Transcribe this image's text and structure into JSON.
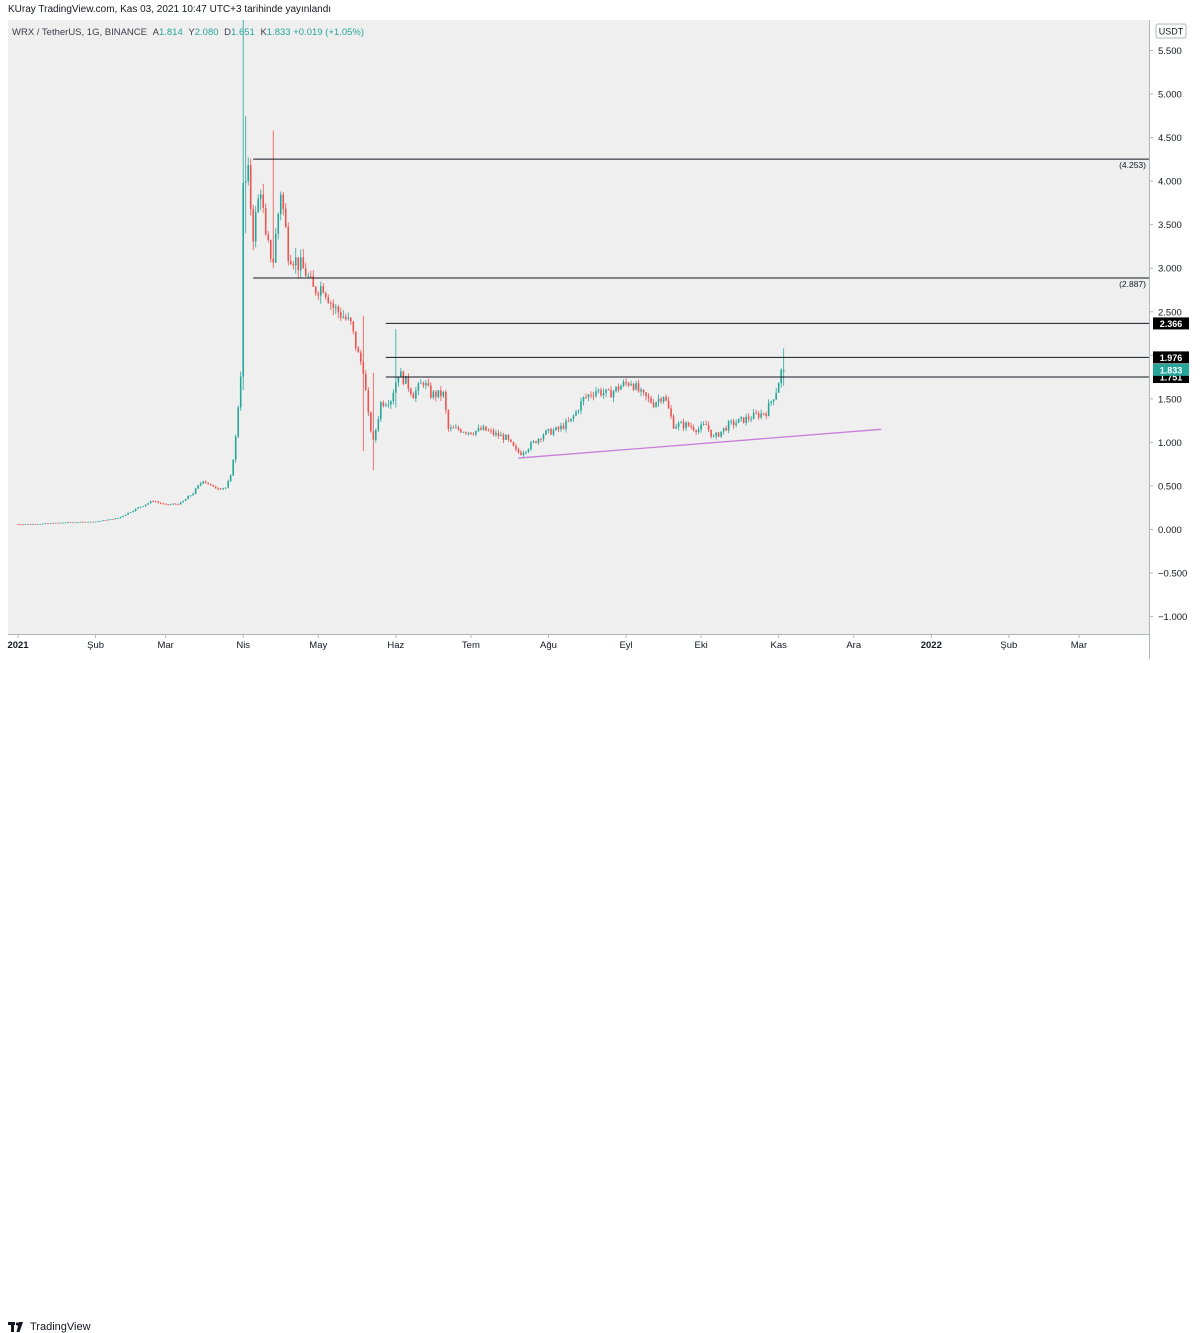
{
  "header": {
    "published_text": "KUray TradingView.com, Kas 03, 2021 10:47 UTC+3 tarihinde yayınlandı"
  },
  "legend": {
    "symbol": "WRX / TetherUS, 1G, BINANCE",
    "open_label": "A",
    "open": "1.814",
    "high_label": "Y",
    "high": "2.080",
    "low_label": "D",
    "low": "1.651",
    "close_label": "K",
    "close": "1.833",
    "change": "+0.019 (+1.05%)"
  },
  "footer": {
    "brand": "TradingView"
  },
  "colors": {
    "up": "#26a69a",
    "down": "#ef5350",
    "plot_bg": "#efefef",
    "trendline": "#c77ed8",
    "hline": "#131722",
    "price_label_bg": "#000000",
    "current_price_bg": "#26a69a"
  },
  "chart_data": {
    "type": "candlestick",
    "currency_label": "USDT",
    "ylim": [
      -1.2,
      5.85
    ],
    "y_ticks": [
      "5.500",
      "5.000",
      "4.500",
      "4.000",
      "3.500",
      "3.000",
      "2.500",
      "2.000",
      "1.500",
      "1.000",
      "0.500",
      "0.000",
      "−0.500",
      "−1.000"
    ],
    "y_tick_values": [
      5.5,
      5.0,
      4.5,
      4.0,
      3.5,
      3.0,
      2.5,
      2.0,
      1.5,
      1.0,
      0.5,
      0.0,
      -0.5,
      -1.0
    ],
    "x_ticks": [
      {
        "label": "2021",
        "date": "2021-01-01"
      },
      {
        "label": "Şub",
        "date": "2021-02-01"
      },
      {
        "label": "Mar",
        "date": "2021-03-01"
      },
      {
        "label": "Nis",
        "date": "2021-04-01"
      },
      {
        "label": "May",
        "date": "2021-05-01"
      },
      {
        "label": "Haz",
        "date": "2021-06-01"
      },
      {
        "label": "Tem",
        "date": "2021-07-01"
      },
      {
        "label": "Ağu",
        "date": "2021-08-01"
      },
      {
        "label": "Eyl",
        "date": "2021-09-01"
      },
      {
        "label": "Eki",
        "date": "2021-10-01"
      },
      {
        "label": "Kas",
        "date": "2021-11-01"
      },
      {
        "label": "Ara",
        "date": "2021-12-01"
      },
      {
        "label": "2022",
        "date": "2022-01-01"
      },
      {
        "label": "Şub",
        "date": "2022-02-01"
      },
      {
        "label": "Mar",
        "date": "2022-03-01"
      }
    ],
    "xlim": [
      "2020-12-28",
      "2022-03-29"
    ],
    "horizontal_levels": [
      {
        "price": 4.253,
        "label": "(4.253)",
        "from": "2021-04-05",
        "style": "bracket"
      },
      {
        "price": 2.887,
        "label": "(2.887)",
        "from": "2021-04-05",
        "style": "bracket"
      },
      {
        "price": 2.366,
        "label": "2.366",
        "from": "2021-05-28",
        "style": "box"
      },
      {
        "price": 1.976,
        "label": "1.976",
        "from": "2021-05-28",
        "style": "box"
      },
      {
        "price": 1.751,
        "label": "1.751",
        "from": "2021-05-28",
        "style": "box"
      }
    ],
    "current_price": {
      "price": 1.833,
      "label": "1.833"
    },
    "trendline": {
      "x1": "2021-07-20",
      "y1": 0.82,
      "x2": "2021-12-12",
      "y2": 1.15
    },
    "price_path": [
      [
        "2021-01-01",
        0.06
      ],
      [
        "2021-01-10",
        0.065
      ],
      [
        "2021-01-20",
        0.08
      ],
      [
        "2021-02-01",
        0.09
      ],
      [
        "2021-02-10",
        0.13
      ],
      [
        "2021-02-18",
        0.25
      ],
      [
        "2021-02-24",
        0.33
      ],
      [
        "2021-03-01",
        0.28
      ],
      [
        "2021-03-07",
        0.3
      ],
      [
        "2021-03-12",
        0.42
      ],
      [
        "2021-03-16",
        0.57
      ],
      [
        "2021-03-20",
        0.48
      ],
      [
        "2021-03-25",
        0.48
      ],
      [
        "2021-03-27",
        0.6
      ],
      [
        "2021-03-29",
        1.05
      ],
      [
        "2021-03-31",
        1.8
      ],
      [
        "2021-04-01",
        3.9
      ],
      [
        "2021-04-03",
        4.05
      ],
      [
        "2021-04-05",
        3.4
      ],
      [
        "2021-04-08",
        3.95
      ],
      [
        "2021-04-10",
        3.3
      ],
      [
        "2021-04-13",
        3.1
      ],
      [
        "2021-04-16",
        3.9
      ],
      [
        "2021-04-19",
        3.2
      ],
      [
        "2021-04-23",
        3.05
      ],
      [
        "2021-04-26",
        2.95
      ],
      [
        "2021-04-29",
        2.75
      ],
      [
        "2021-05-03",
        2.8
      ],
      [
        "2021-05-07",
        2.55
      ],
      [
        "2021-05-11",
        2.45
      ],
      [
        "2021-05-14",
        2.35
      ],
      [
        "2021-05-17",
        2.0
      ],
      [
        "2021-05-19",
        1.85
      ],
      [
        "2021-05-21",
        1.3
      ],
      [
        "2021-05-23",
        1.0
      ],
      [
        "2021-05-26",
        1.45
      ],
      [
        "2021-05-30",
        1.5
      ],
      [
        "2021-06-02",
        1.8
      ],
      [
        "2021-06-05",
        1.7
      ],
      [
        "2021-06-08",
        1.55
      ],
      [
        "2021-06-12",
        1.7
      ],
      [
        "2021-06-15",
        1.55
      ],
      [
        "2021-06-20",
        1.55
      ],
      [
        "2021-06-22",
        1.15
      ],
      [
        "2021-06-26",
        1.15
      ],
      [
        "2021-07-01",
        1.12
      ],
      [
        "2021-07-06",
        1.15
      ],
      [
        "2021-07-10",
        1.1
      ],
      [
        "2021-07-15",
        1.05
      ],
      [
        "2021-07-19",
        0.9
      ],
      [
        "2021-07-21",
        0.88
      ],
      [
        "2021-07-25",
        0.97
      ],
      [
        "2021-07-30",
        1.1
      ],
      [
        "2021-08-05",
        1.15
      ],
      [
        "2021-08-10",
        1.25
      ],
      [
        "2021-08-15",
        1.5
      ],
      [
        "2021-08-20",
        1.6
      ],
      [
        "2021-08-25",
        1.55
      ],
      [
        "2021-08-30",
        1.65
      ],
      [
        "2021-09-03",
        1.7
      ],
      [
        "2021-09-07",
        1.55
      ],
      [
        "2021-09-12",
        1.45
      ],
      [
        "2021-09-16",
        1.55
      ],
      [
        "2021-09-20",
        1.2
      ],
      [
        "2021-09-25",
        1.2
      ],
      [
        "2021-09-30",
        1.15
      ],
      [
        "2021-10-03",
        1.2
      ],
      [
        "2021-10-06",
        1.05
      ],
      [
        "2021-10-12",
        1.2
      ],
      [
        "2021-10-17",
        1.25
      ],
      [
        "2021-10-22",
        1.3
      ],
      [
        "2021-10-27",
        1.35
      ],
      [
        "2021-10-31",
        1.6
      ],
      [
        "2021-11-02",
        1.81
      ],
      [
        "2021-11-03",
        1.833
      ]
    ],
    "wicks": [
      {
        "date": "2021-04-01",
        "high": 5.85,
        "low": 1.6
      },
      {
        "date": "2021-04-02",
        "high": 4.75,
        "low": 3.4
      },
      {
        "date": "2021-04-13",
        "high": 4.58,
        "low": 3.0
      },
      {
        "date": "2021-05-19",
        "high": 2.45,
        "low": 0.9
      },
      {
        "date": "2021-05-23",
        "high": 1.8,
        "low": 0.68
      },
      {
        "date": "2021-06-01",
        "high": 2.3,
        "low": 1.4
      },
      {
        "date": "2021-11-03",
        "high": 2.08,
        "low": 1.65
      }
    ]
  }
}
